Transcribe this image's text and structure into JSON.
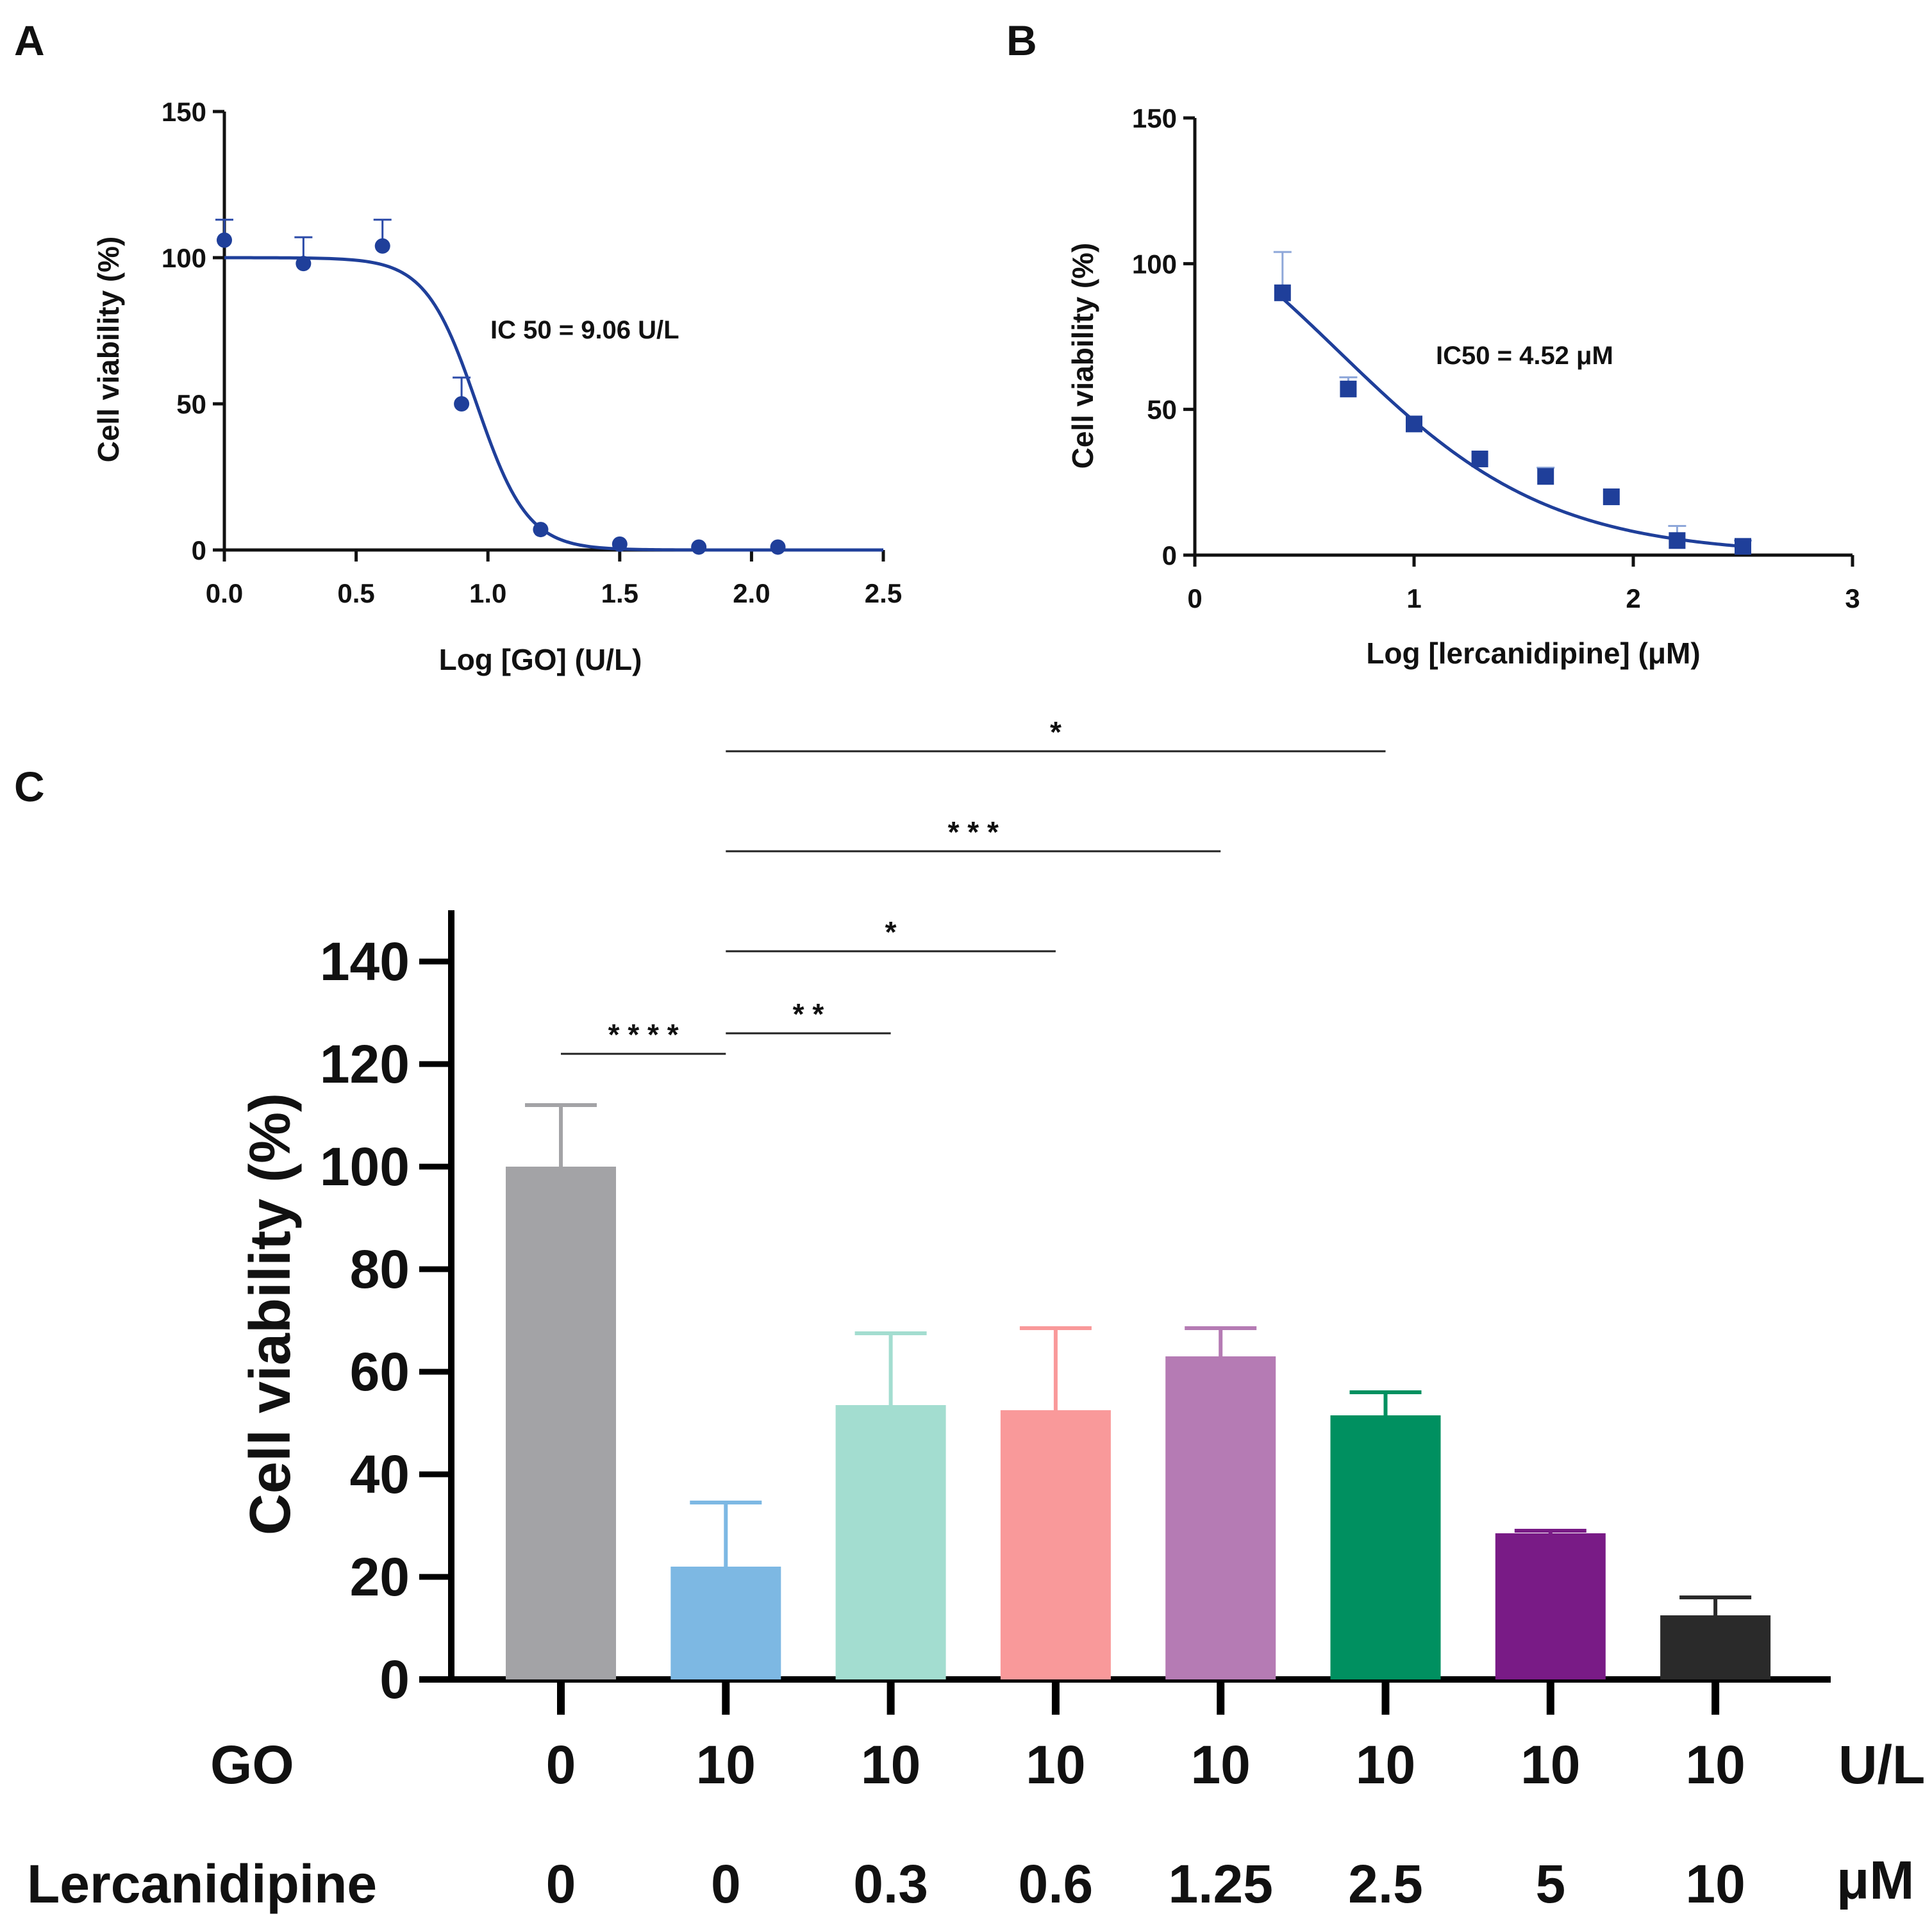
{
  "panels": {
    "A": {
      "letter": "A",
      "chart_data": {
        "type": "scatter",
        "title": "",
        "xlabel": "Log [GO] (U/L)",
        "ylabel": "Cell viability (%)",
        "xlim": [
          0,
          2.5
        ],
        "ylim": [
          0,
          150
        ],
        "xticks": [
          0,
          0.5,
          1.0,
          1.5,
          2.0,
          2.5
        ],
        "xtick_labels": [
          "0.0",
          "0.5",
          "1.0",
          "1.5",
          "2.0",
          "2.5"
        ],
        "yticks": [
          0,
          50,
          100,
          150
        ],
        "ytick_labels": [
          "0",
          "50",
          "100",
          "150"
        ],
        "x": [
          0.0,
          0.3,
          0.6,
          0.9,
          1.2,
          1.5,
          1.8,
          2.1
        ],
        "y": [
          106,
          98,
          104,
          50,
          7,
          2,
          1,
          1
        ],
        "error": [
          7,
          9,
          9,
          9,
          0,
          0,
          0,
          0
        ],
        "fit": {
          "top": 100,
          "bottom": 0,
          "log_ic50": 0.957,
          "hill": -4.5
        },
        "annotation": "IC 50 = 9.06 U/L",
        "color": "#1f3f9a"
      }
    },
    "B": {
      "letter": "B",
      "chart_data": {
        "type": "scatter",
        "title": "",
        "xlabel": "Log [lercanidipine] (μM)",
        "ylabel": "Cell viability (%)",
        "xlim": [
          0,
          3
        ],
        "ylim": [
          0,
          150
        ],
        "xticks": [
          0,
          1,
          2,
          3
        ],
        "xtick_labels": [
          "0",
          "1",
          "2",
          "3"
        ],
        "yticks": [
          0,
          50,
          100,
          150
        ],
        "ytick_labels": [
          "0",
          "50",
          "100",
          "150"
        ],
        "x": [
          0.4,
          0.7,
          1.0,
          1.3,
          1.6,
          1.9,
          2.2,
          2.5
        ],
        "y": [
          90,
          57,
          45,
          33,
          27,
          20,
          5,
          3
        ],
        "error": [
          14,
          4,
          0,
          0,
          3,
          0,
          5,
          2
        ],
        "fit": {
          "top": 140,
          "bottom": 0,
          "log_ic50": 0.655,
          "hill": -0.9
        },
        "fit_range": [
          0.4,
          2.5
        ],
        "annotation": "IC50 = 4.52 μM",
        "color": "#1f3f9a"
      }
    },
    "C": {
      "letter": "C",
      "chart_data": {
        "type": "bar",
        "title": "",
        "ylabel": "Cell viability (%)",
        "ylim": [
          0,
          150
        ],
        "yticks": [
          0,
          20,
          40,
          60,
          80,
          100,
          120,
          140
        ],
        "ytick_labels": [
          "0",
          "20",
          "40",
          "60",
          "80",
          "100",
          "120",
          "140"
        ],
        "values": [
          100,
          22,
          53.5,
          52.5,
          63,
          51.5,
          28.5,
          12.5
        ],
        "errors": [
          12,
          12.5,
          14,
          16,
          5.5,
          4.5,
          0.5,
          3.5
        ],
        "colors": [
          "#a3a3a6",
          "#7db8e3",
          "#a3ddd0",
          "#f9999a",
          "#b57bb4",
          "#009060",
          "#791b86",
          "#2a2a2a"
        ],
        "rows": [
          {
            "name": "GO",
            "unit": "U/L",
            "labels": [
              "0",
              "10",
              "10",
              "10",
              "10",
              "10",
              "10",
              "10"
            ]
          },
          {
            "name": "Lercanidipine",
            "unit": "μM",
            "labels": [
              "0",
              "0",
              "0.3",
              "0.6",
              "1.25",
              "2.5",
              "5",
              "10"
            ]
          }
        ],
        "significance": [
          {
            "from": 0,
            "to": 1,
            "y": 122,
            "label": "* * * *"
          },
          {
            "from": 1,
            "to": 2,
            "y": 126,
            "label": "* *"
          },
          {
            "from": 1,
            "to": 3,
            "y": 142,
            "label": "*"
          },
          {
            "from": 1,
            "to": 4,
            "y": 161.5,
            "label": "* * *"
          },
          {
            "from": 1,
            "to": 5,
            "y": 181,
            "label": "*"
          }
        ]
      }
    }
  }
}
